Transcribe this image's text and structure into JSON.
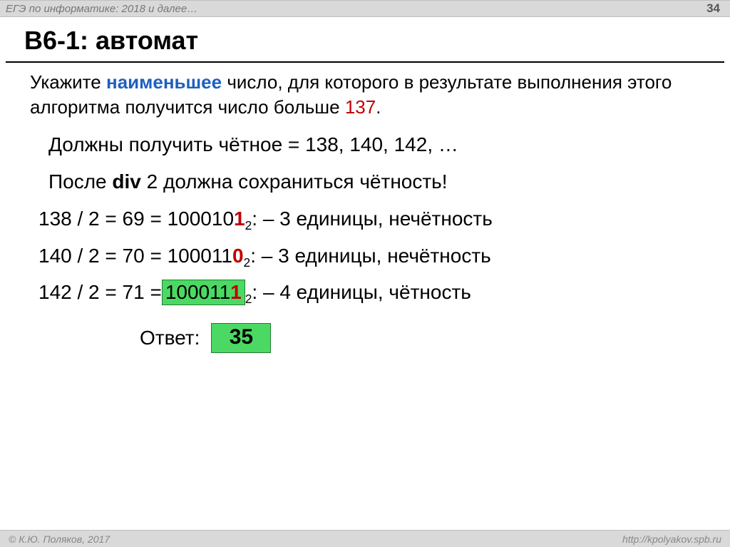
{
  "colors": {
    "background": "#ffffff",
    "bar_bg": "#d9d9d9",
    "bar_border": "#bfbfbf",
    "text": "#000000",
    "muted": "#777777",
    "blue": "#1f5fbf",
    "red": "#c00000",
    "highlight_bg": "#4bd963",
    "highlight_border": "#267a36"
  },
  "typography": {
    "title_size_pt": 36,
    "body_size_pt": 26,
    "note_size_pt": 28,
    "footer_size_pt": 14
  },
  "header": {
    "left": "ЕГЭ по информатике: 2018 и далее…",
    "page_number": "34"
  },
  "title": "B6-1: автомат",
  "task": {
    "prefix": "Укажите ",
    "emph": "наименьшее",
    "mid": " число, для которого в результате выполнения этого алгоритма получится число больше ",
    "value": "137",
    "suffix": "."
  },
  "notes": {
    "line1_prefix": "Должны получить чётное = ",
    "line1_values": "138, 140, 142, …",
    "line2_prefix": "После ",
    "line2_bold": "div",
    "line2_suffix": " 2 должна сохраниться чётность!"
  },
  "calc": [
    {
      "expr_prefix": "138 / 2 = 69 = 100010",
      "last_digit": "1",
      "sub": "2",
      "tail": " :  – 3 единицы, нечётность",
      "highlight_binary": false
    },
    {
      "expr_prefix": "140 / 2 = 70 = 100011",
      "last_digit": "0",
      "sub": "2",
      "tail": " :  – 3 единицы, нечётность",
      "highlight_binary": false
    },
    {
      "expr_prefix": "142 / 2 = 71 = ",
      "binary_box": "100011",
      "last_digit": "1",
      "sub": "2",
      "tail": " :  – 4 единицы, чётность",
      "highlight_binary": true
    }
  ],
  "answer": {
    "label": "Ответ:",
    "value": "35"
  },
  "footer": {
    "left": "© К.Ю. Поляков, 2017",
    "right": "http://kpolyakov.spb.ru"
  }
}
